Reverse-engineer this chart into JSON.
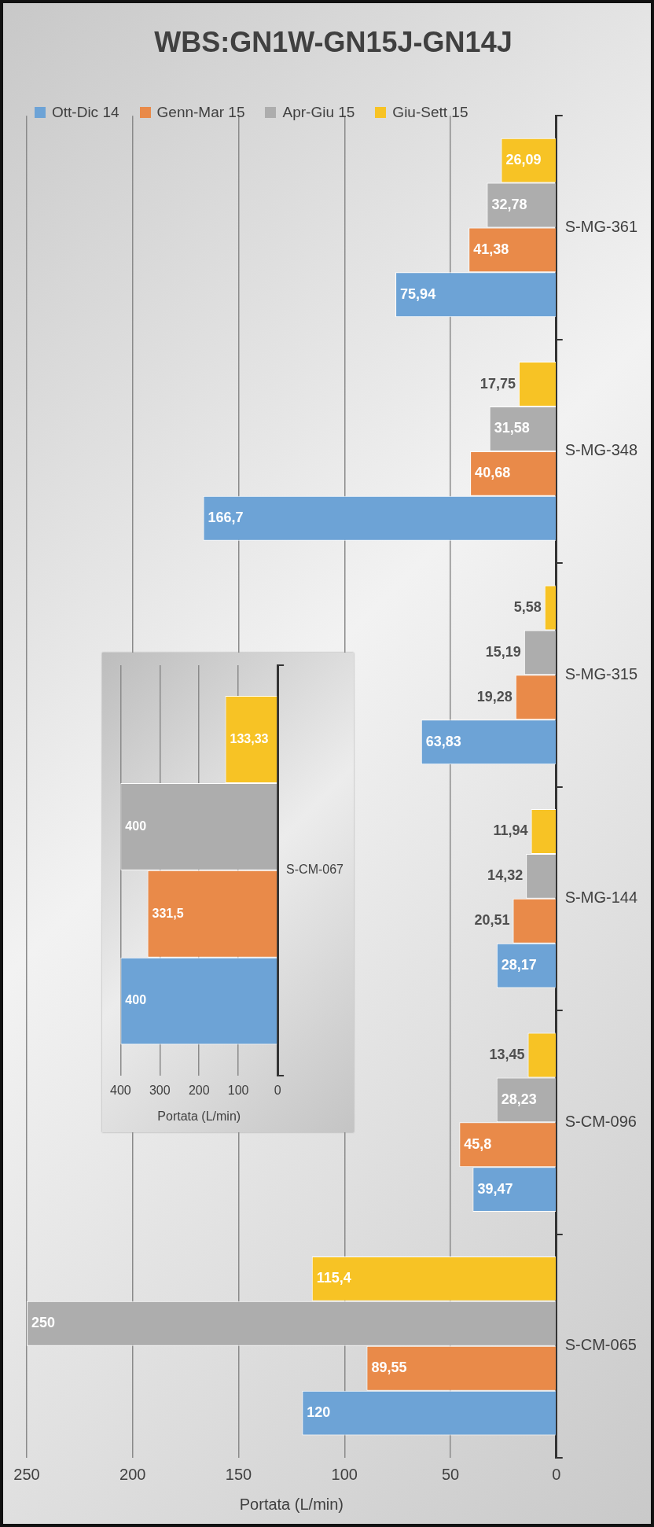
{
  "chart_data": [
    {
      "type": "bar",
      "orientation": "horizontal",
      "title": "WBS:GN1W-GN15J-GN14J",
      "xlabel": "Portata (L/min)",
      "categories": [
        "S-MG-361",
        "S-MG-348",
        "S-MG-315",
        "S-MG-144",
        "S-CM-096",
        "S-CM-065"
      ],
      "series": [
        {
          "name": "Giu-Sett 15",
          "color": "#f7c325",
          "values": [
            26.09,
            17.75,
            5.58,
            11.94,
            13.45,
            115.4
          ],
          "value_labels": [
            "26,09",
            "17,75",
            "5,58",
            "11,94",
            "13,45",
            "115,4"
          ]
        },
        {
          "name": "Apr-Giu 15",
          "color": "#adadad",
          "values": [
            32.78,
            31.58,
            15.19,
            14.32,
            28.23,
            250
          ],
          "value_labels": [
            "32,78",
            "31,58",
            "15,19",
            "14,32",
            "28,23",
            "250"
          ]
        },
        {
          "name": "Genn-Mar 15",
          "color": "#e98a49",
          "values": [
            41.38,
            40.68,
            19.28,
            20.51,
            45.8,
            89.55
          ],
          "value_labels": [
            "41,38",
            "40,68",
            "19,28",
            "20,51",
            "45,8",
            "89,55"
          ]
        },
        {
          "name": "Ott-Dic 14",
          "color": "#6da3d6",
          "values": [
            75.94,
            166.7,
            63.83,
            28.17,
            39.47,
            120
          ],
          "value_labels": [
            "75,94",
            "166,7",
            "63,83",
            "28,17",
            "39,47",
            "120"
          ]
        }
      ],
      "xlim": [
        250,
        0
      ],
      "xticks": [
        250,
        200,
        150,
        100,
        50,
        0
      ],
      "grid": "x",
      "legend": "top left"
    },
    {
      "type": "bar",
      "orientation": "horizontal",
      "xlabel": "Portata (L/min)",
      "categories": [
        "S-CM-067"
      ],
      "series": [
        {
          "color": "#f7c325",
          "values": [
            133.33
          ],
          "value_labels": [
            "133,33"
          ]
        },
        {
          "color": "#adadad",
          "values": [
            400
          ],
          "value_labels": [
            "400"
          ]
        },
        {
          "color": "#e98a49",
          "values": [
            331.5
          ],
          "value_labels": [
            "331,5"
          ]
        },
        {
          "color": "#6da3d6",
          "values": [
            400
          ],
          "value_labels": [
            "400"
          ]
        }
      ],
      "xlim": [
        400,
        0
      ],
      "xticks": [
        400,
        300,
        200,
        100,
        0
      ],
      "grid": "x"
    }
  ]
}
